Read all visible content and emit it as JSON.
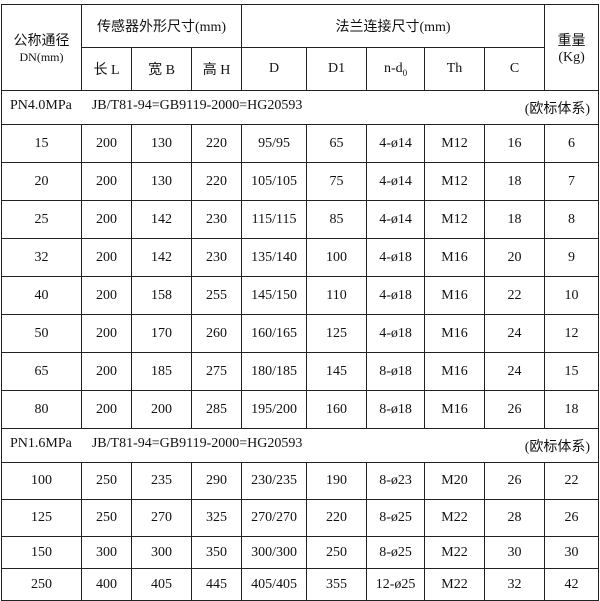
{
  "header": {
    "dn": "公称通径",
    "dn_unit": "DN(mm)",
    "sensor": "传感器外形尺寸(mm)",
    "flange": "法兰连接尺寸(mm)",
    "weight": "重量",
    "weight_unit": "(Kg)",
    "cols": [
      "长 L",
      "宽 B",
      "高 H",
      "D",
      "D1",
      "n-d",
      "Th",
      "C"
    ],
    "nd_sub": "0"
  },
  "sections": [
    {
      "pressure": "PN4.0MPa",
      "standard": "JB/T81-94=GB9119-2000=HG20593",
      "system": "(欧标体系)",
      "rows": [
        [
          "15",
          "200",
          "130",
          "220",
          "95/95",
          "65",
          "4-ø14",
          "M12",
          "16",
          "6"
        ],
        [
          "20",
          "200",
          "130",
          "220",
          "105/105",
          "75",
          "4-ø14",
          "M12",
          "18",
          "7"
        ],
        [
          "25",
          "200",
          "142",
          "230",
          "115/115",
          "85",
          "4-ø14",
          "M12",
          "18",
          "8"
        ],
        [
          "32",
          "200",
          "142",
          "230",
          "135/140",
          "100",
          "4-ø18",
          "M16",
          "20",
          "9"
        ],
        [
          "40",
          "200",
          "158",
          "255",
          "145/150",
          "110",
          "4-ø18",
          "M16",
          "22",
          "10"
        ],
        [
          "50",
          "200",
          "170",
          "260",
          "160/165",
          "125",
          "4-ø18",
          "M16",
          "24",
          "12"
        ],
        [
          "65",
          "200",
          "185",
          "275",
          "180/185",
          "145",
          "8-ø18",
          "M16",
          "24",
          "15"
        ],
        [
          "80",
          "200",
          "200",
          "285",
          "195/200",
          "160",
          "8-ø18",
          "M16",
          "26",
          "18"
        ]
      ]
    },
    {
      "pressure": "PN1.6MPa",
      "standard": "JB/T81-94=GB9119-2000=HG20593",
      "system": "(欧标体系)",
      "rows": [
        [
          "100",
          "250",
          "235",
          "290",
          "230/235",
          "190",
          "8-ø23",
          "M20",
          "26",
          "22"
        ],
        [
          "125",
          "250",
          "270",
          "325",
          "270/270",
          "220",
          "8-ø25",
          "M22",
          "28",
          "26"
        ],
        [
          "150",
          "300",
          "300",
          "350",
          "300/300",
          "250",
          "8-ø25",
          "M22",
          "30",
          "30"
        ],
        [
          "250",
          "400",
          "405",
          "445",
          "405/405",
          "355",
          "12-ø25",
          "M22",
          "32",
          "42"
        ]
      ]
    }
  ]
}
